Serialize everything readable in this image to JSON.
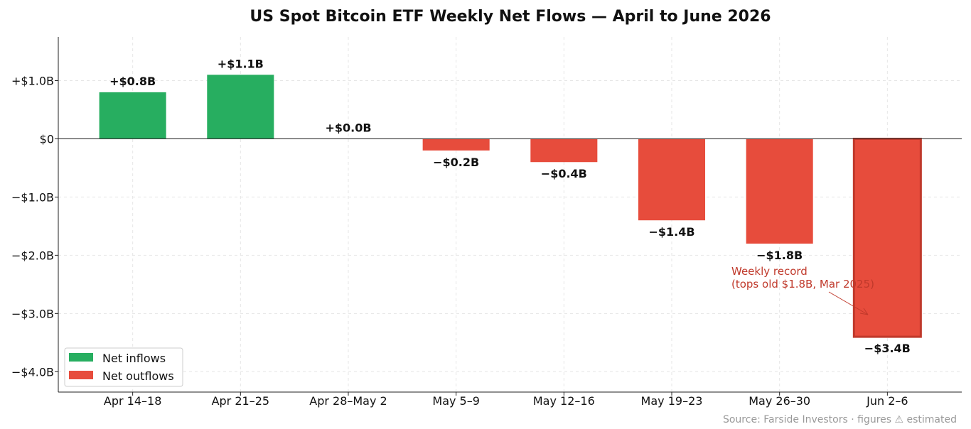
{
  "chart_data": {
    "type": "bar",
    "title": "US Spot Bitcoin ETF Weekly Net Flows — April to June 2026",
    "xlabel": "",
    "ylabel": "",
    "categories": [
      "Apr 14–18",
      "Apr 21–25",
      "Apr 28–May 2",
      "May 5–9",
      "May 12–16",
      "May 19–23",
      "May 26–30",
      "Jun 2–6"
    ],
    "values": [
      0.8,
      1.1,
      0.0,
      -0.2,
      -0.4,
      -1.4,
      -1.8,
      -3.4
    ],
    "value_labels": [
      "+$0.8B",
      "+$1.1B",
      "+$0.0B",
      "−$0.2B",
      "−$0.4B",
      "−$1.4B",
      "−$1.8B",
      "−$3.4B"
    ],
    "ylim": [
      -4.35,
      1.75
    ],
    "yticks": [
      1.0,
      0,
      -1.0,
      -2.0,
      -3.0,
      -4.0
    ],
    "ytick_labels": [
      "+$1.0B",
      "$0",
      "−$1.0B",
      "−$2.0B",
      "−$3.0B",
      "−$4.0B"
    ],
    "grid": true,
    "legend": {
      "placement": "bottom-left",
      "entries": [
        {
          "label": "Net inflows",
          "color": "#27ae60"
        },
        {
          "label": "Net outflows",
          "color": "#e74c3c"
        }
      ]
    },
    "colors": {
      "inflow": "#27ae60",
      "outflow": "#e74c3c",
      "highlight_edge": "#c0392b"
    },
    "highlight_index": 7,
    "annotation": {
      "lines": [
        "Weekly record",
        "(tops old $1.8B, Mar 2025)"
      ],
      "target_category": "Jun 2–6",
      "target_value": -3.05
    },
    "source": "Source: Farside Investors · figures ⚠ estimated"
  }
}
